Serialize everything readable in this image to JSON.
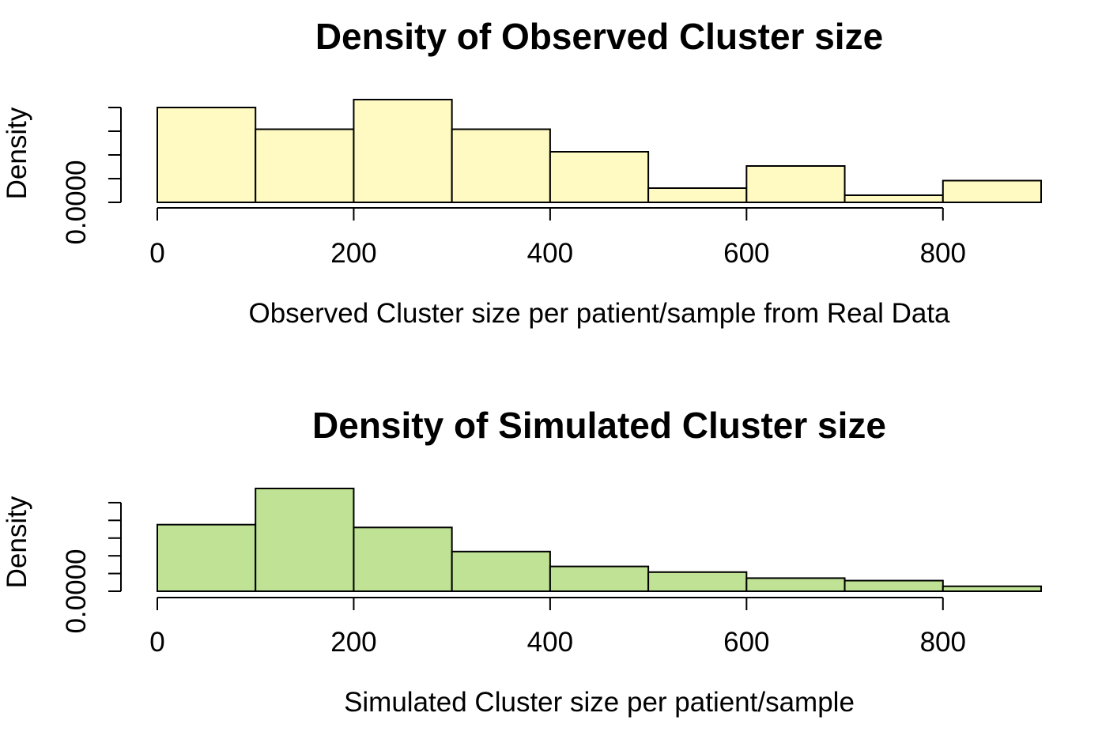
{
  "chart_data": [
    {
      "type": "bar",
      "title": "Density of Observed Cluster size",
      "xlabel": "Observed Cluster size per patient/sample from Real Data",
      "ylabel": "Density",
      "bin_edges": [
        0,
        100,
        200,
        300,
        400,
        500,
        600,
        700,
        800,
        900
      ],
      "values": [
        0.0024,
        0.00185,
        0.0026,
        0.00185,
        0.00128,
        0.00036,
        0.00092,
        0.00018,
        0.00055
      ],
      "xlim": [
        0,
        900
      ],
      "ylim": [
        0,
        0.0026
      ],
      "x_ticks": [
        0,
        200,
        400,
        600,
        800
      ],
      "x_tick_labels": [
        "0",
        "200",
        "400",
        "600",
        "800"
      ],
      "y_ticks": [
        0,
        0.0006,
        0.0012,
        0.0018,
        0.0024
      ],
      "y_tick_labels": [
        "0.0000",
        "",
        "",
        "",
        ""
      ],
      "fill_color": "#FFFAC2",
      "grid": false
    },
    {
      "type": "bar",
      "title": "Density of Simulated Cluster size",
      "xlabel": "Simulated Cluster size per patient/sample",
      "ylabel": "Density",
      "bin_edges": [
        0,
        100,
        200,
        300,
        400,
        500,
        600,
        700,
        800,
        900
      ],
      "values": [
        0.00188,
        0.0029,
        0.0018,
        0.00112,
        0.0007,
        0.00054,
        0.00037,
        0.0003,
        0.00014
      ],
      "xlim": [
        0,
        900
      ],
      "ylim": [
        0,
        0.0029
      ],
      "x_ticks": [
        0,
        200,
        400,
        600,
        800
      ],
      "x_tick_labels": [
        "0",
        "200",
        "400",
        "600",
        "800"
      ],
      "y_ticks": [
        0,
        0.0005,
        0.001,
        0.0015,
        0.002,
        0.0025,
        0.003
      ],
      "y_tick_labels": [
        "0.0000",
        "",
        "",
        "",
        "",
        "",
        ""
      ],
      "fill_color": "#BFE295",
      "grid": false
    }
  ]
}
